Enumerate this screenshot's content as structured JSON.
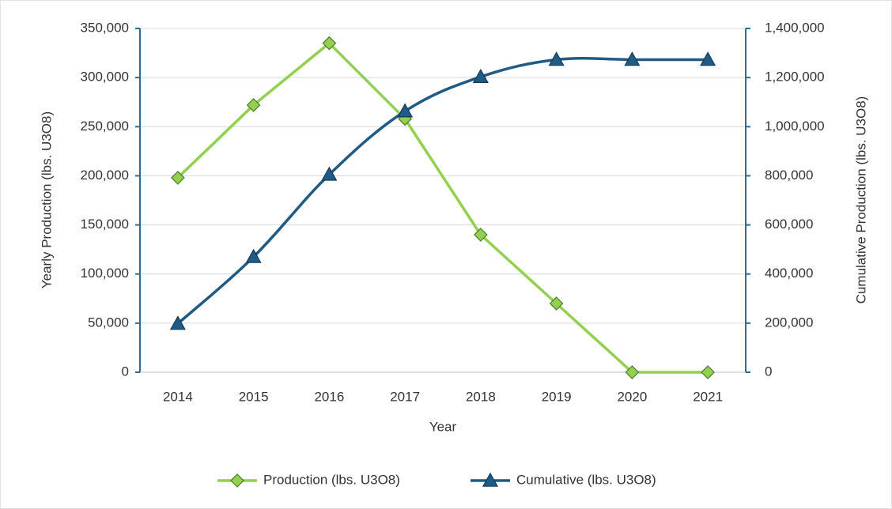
{
  "chart_data": {
    "type": "line",
    "categories": [
      "2014",
      "2015",
      "2016",
      "2017",
      "2018",
      "2019",
      "2020",
      "2021"
    ],
    "xlabel": "Year",
    "ylabel": "Yearly Production (lbs. U3O8)",
    "y2label": "Cumulative Production (lbs. U3O8)",
    "ylim": [
      0,
      350000
    ],
    "yticks": [
      0,
      {
        "value": 50000,
        "label": "50,000"
      },
      {
        "value": 100000,
        "label": "100,000"
      },
      {
        "value": 150000,
        "label": "150,000"
      },
      {
        "value": 200000,
        "label": "200,000"
      },
      {
        "value": 250000,
        "label": "250,000"
      },
      {
        "value": 300000,
        "label": "300,000"
      },
      {
        "value": 350000,
        "label": "350,000"
      }
    ],
    "y2lim": [
      0,
      1400000
    ],
    "y2ticks": [
      0,
      {
        "value": 200000,
        "label": "200,000"
      },
      {
        "value": 400000,
        "label": "400,000"
      },
      {
        "value": 600000,
        "label": "600,000"
      },
      {
        "value": 800000,
        "label": "800,000"
      },
      {
        "value": 1000000,
        "label": "1,000,000"
      },
      {
        "value": 1200000,
        "label": "1,200,000"
      },
      {
        "value": 1400000,
        "label": "1,400,000"
      }
    ],
    "grid": true,
    "legend": "bottom",
    "series": [
      {
        "name": "Production (lbs. U3O8)",
        "color": "#92d050",
        "marker": "diamond",
        "values": [
          198000,
          272000,
          335000,
          258000,
          140000,
          70000,
          0,
          0
        ]
      },
      {
        "name": "Cumulative (lbs. U3O8)",
        "color": "#1f5b85",
        "marker": "triangle",
        "axis": "y2",
        "smooth": true,
        "values": [
          198000,
          470000,
          805000,
          1063000,
          1203000,
          1273000,
          1273000,
          1273000
        ]
      }
    ]
  }
}
